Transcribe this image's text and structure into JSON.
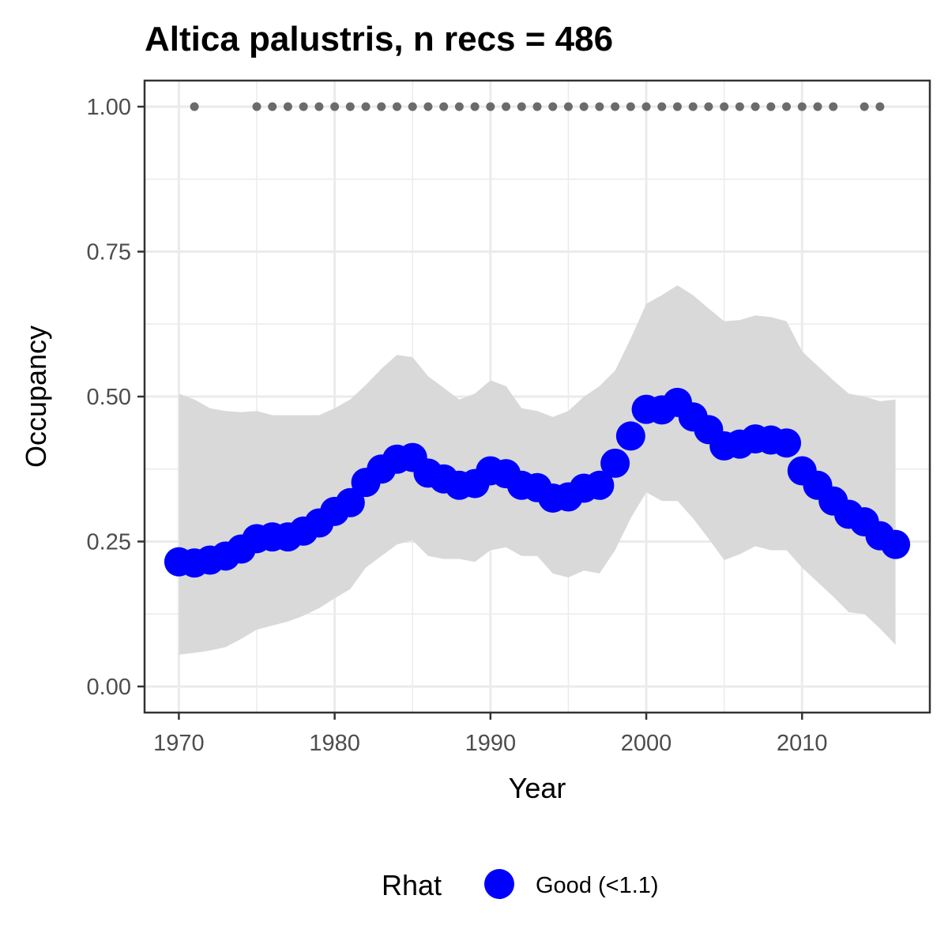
{
  "chart_data": {
    "type": "line",
    "title": "Altica palustris, n recs = 486",
    "xlabel": "Year",
    "ylabel": "Occupancy",
    "xlim": [
      1967.8,
      2018.2
    ],
    "ylim": [
      -0.045,
      1.045
    ],
    "x_ticks": [
      1970,
      1980,
      1990,
      2000,
      2010
    ],
    "x_tick_labels": [
      "1970",
      "1980",
      "1990",
      "2000",
      "2010"
    ],
    "y_ticks": [
      0.0,
      0.25,
      0.5,
      0.75,
      1.0
    ],
    "y_tick_labels": [
      "0.00",
      "0.25",
      "0.50",
      "0.75",
      "1.00"
    ],
    "grid": true,
    "legend": {
      "position": "bottom",
      "title": "Rhat",
      "entries": [
        {
          "label": "Good (<1.1)",
          "color": "#0000ff"
        }
      ]
    },
    "colors": {
      "estimate": "#0000ff",
      "ribbon": "#d9d9d9",
      "records": "#6b6b6b",
      "grid": "#ebebeb",
      "panel_border": "#333333"
    },
    "series": [
      {
        "kind": "estimate",
        "x": [
          1970,
          1971,
          1972,
          1973,
          1974,
          1975,
          1976,
          1977,
          1978,
          1979,
          1980,
          1981,
          1982,
          1983,
          1984,
          1985,
          1986,
          1987,
          1988,
          1989,
          1990,
          1991,
          1992,
          1993,
          1994,
          1995,
          1996,
          1997,
          1998,
          1999,
          2000,
          2001,
          2002,
          2003,
          2004,
          2005,
          2006,
          2007,
          2008,
          2009,
          2010,
          2011,
          2012,
          2013,
          2014,
          2015,
          2016
        ],
        "values": [
          0.215,
          0.213,
          0.218,
          0.225,
          0.237,
          0.255,
          0.258,
          0.258,
          0.268,
          0.282,
          0.302,
          0.317,
          0.352,
          0.375,
          0.392,
          0.395,
          0.368,
          0.358,
          0.347,
          0.35,
          0.372,
          0.367,
          0.347,
          0.343,
          0.325,
          0.327,
          0.342,
          0.347,
          0.385,
          0.432,
          0.478,
          0.477,
          0.49,
          0.465,
          0.443,
          0.415,
          0.418,
          0.427,
          0.425,
          0.42,
          0.372,
          0.347,
          0.32,
          0.297,
          0.284,
          0.26,
          0.245
        ]
      },
      {
        "kind": "interval",
        "x": [
          1970,
          1971,
          1972,
          1973,
          1974,
          1975,
          1976,
          1977,
          1978,
          1979,
          1980,
          1981,
          1982,
          1983,
          1984,
          1985,
          1986,
          1987,
          1988,
          1989,
          1990,
          1991,
          1992,
          1993,
          1994,
          1995,
          1996,
          1997,
          1998,
          1999,
          2000,
          2001,
          2002,
          2003,
          2004,
          2005,
          2006,
          2007,
          2008,
          2009,
          2010,
          2011,
          2012,
          2013,
          2014,
          2015,
          2016
        ],
        "upper": [
          0.505,
          0.495,
          0.48,
          0.475,
          0.473,
          0.475,
          0.468,
          0.468,
          0.468,
          0.468,
          0.48,
          0.495,
          0.52,
          0.548,
          0.572,
          0.568,
          0.535,
          0.515,
          0.495,
          0.505,
          0.528,
          0.518,
          0.48,
          0.475,
          0.465,
          0.475,
          0.5,
          0.518,
          0.545,
          0.6,
          0.66,
          0.675,
          0.692,
          0.675,
          0.652,
          0.63,
          0.632,
          0.64,
          0.637,
          0.63,
          0.578,
          0.553,
          0.528,
          0.505,
          0.5,
          0.492,
          0.495
        ],
        "lower": [
          0.055,
          0.058,
          0.062,
          0.068,
          0.082,
          0.098,
          0.105,
          0.112,
          0.122,
          0.135,
          0.152,
          0.168,
          0.205,
          0.225,
          0.245,
          0.252,
          0.225,
          0.22,
          0.22,
          0.215,
          0.235,
          0.24,
          0.225,
          0.225,
          0.195,
          0.188,
          0.2,
          0.195,
          0.235,
          0.29,
          0.335,
          0.32,
          0.32,
          0.29,
          0.255,
          0.218,
          0.228,
          0.242,
          0.235,
          0.235,
          0.205,
          0.18,
          0.155,
          0.128,
          0.125,
          0.1,
          0.072
        ]
      },
      {
        "kind": "records",
        "x": [
          1971,
          1975,
          1976,
          1977,
          1978,
          1979,
          1980,
          1981,
          1982,
          1983,
          1984,
          1985,
          1986,
          1987,
          1988,
          1989,
          1990,
          1991,
          1992,
          1993,
          1994,
          1995,
          1996,
          1997,
          1998,
          1999,
          2000,
          2001,
          2002,
          2003,
          2004,
          2005,
          2006,
          2007,
          2008,
          2009,
          2010,
          2011,
          2012,
          2014,
          2015
        ],
        "values": [
          1,
          1,
          1,
          1,
          1,
          1,
          1,
          1,
          1,
          1,
          1,
          1,
          1,
          1,
          1,
          1,
          1,
          1,
          1,
          1,
          1,
          1,
          1,
          1,
          1,
          1,
          1,
          1,
          1,
          1,
          1,
          1,
          1,
          1,
          1,
          1,
          1,
          1,
          1,
          1,
          1
        ]
      }
    ]
  }
}
